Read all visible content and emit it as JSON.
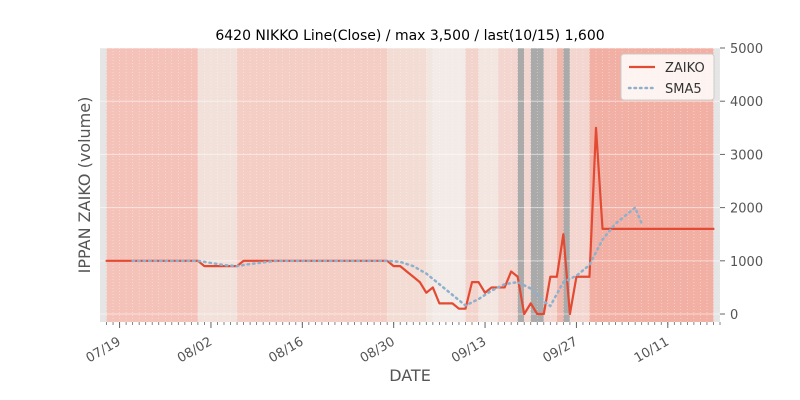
{
  "chart_data": {
    "type": "line",
    "title": "6420 NIKKO Line(Close) / max 3,500 / last(10/15) 1,600",
    "xlabel": "DATE",
    "ylabel": "IPPAN ZAIKO (volume)",
    "x_start": "2024-07-17",
    "x_range": [
      "2024-07-16",
      "2024-10-19"
    ],
    "ylim": [
      -150,
      5000
    ],
    "y_ticks": [
      0,
      1000,
      2000,
      3000,
      4000,
      5000
    ],
    "x_ticks": [
      {
        "date": "2024-07-19",
        "label": "07/19"
      },
      {
        "date": "2024-08-02",
        "label": "08/02"
      },
      {
        "date": "2024-08-16",
        "label": "08/16"
      },
      {
        "date": "2024-08-30",
        "label": "08/30"
      },
      {
        "date": "2024-09-13",
        "label": "09/13"
      },
      {
        "date": "2024-09-27",
        "label": "09/27"
      },
      {
        "date": "2024-10-11",
        "label": "10/11"
      }
    ],
    "grid": true,
    "legend_position": "top-right",
    "colors": {
      "zaiko": "#e24a33",
      "sma5": "#8fb0cc",
      "axes_bg": "#e5e5e5",
      "grid": "#ffffff"
    },
    "series": [
      {
        "name": "ZAIKO",
        "style": "solid",
        "points": [
          [
            "2024-07-17",
            1000
          ],
          [
            "2024-07-18",
            1000
          ],
          [
            "2024-07-19",
            1000
          ],
          [
            "2024-07-20",
            1000
          ],
          [
            "2024-07-21",
            1000
          ],
          [
            "2024-07-22",
            1000
          ],
          [
            "2024-07-23",
            1000
          ],
          [
            "2024-07-24",
            1000
          ],
          [
            "2024-07-25",
            1000
          ],
          [
            "2024-07-26",
            1000
          ],
          [
            "2024-07-27",
            1000
          ],
          [
            "2024-07-28",
            1000
          ],
          [
            "2024-07-29",
            1000
          ],
          [
            "2024-07-30",
            1000
          ],
          [
            "2024-07-31",
            1000
          ],
          [
            "2024-08-01",
            900
          ],
          [
            "2024-08-02",
            900
          ],
          [
            "2024-08-03",
            900
          ],
          [
            "2024-08-04",
            900
          ],
          [
            "2024-08-05",
            900
          ],
          [
            "2024-08-06",
            900
          ],
          [
            "2024-08-07",
            1000
          ],
          [
            "2024-08-08",
            1000
          ],
          [
            "2024-08-09",
            1000
          ],
          [
            "2024-08-10",
            1000
          ],
          [
            "2024-08-11",
            1000
          ],
          [
            "2024-08-12",
            1000
          ],
          [
            "2024-08-13",
            1000
          ],
          [
            "2024-08-14",
            1000
          ],
          [
            "2024-08-15",
            1000
          ],
          [
            "2024-08-16",
            1000
          ],
          [
            "2024-08-17",
            1000
          ],
          [
            "2024-08-18",
            1000
          ],
          [
            "2024-08-19",
            1000
          ],
          [
            "2024-08-20",
            1000
          ],
          [
            "2024-08-21",
            1000
          ],
          [
            "2024-08-22",
            1000
          ],
          [
            "2024-08-23",
            1000
          ],
          [
            "2024-08-24",
            1000
          ],
          [
            "2024-08-25",
            1000
          ],
          [
            "2024-08-26",
            1000
          ],
          [
            "2024-08-27",
            1000
          ],
          [
            "2024-08-28",
            1000
          ],
          [
            "2024-08-29",
            1000
          ],
          [
            "2024-08-30",
            900
          ],
          [
            "2024-08-31",
            900
          ],
          [
            "2024-09-01",
            800
          ],
          [
            "2024-09-02",
            700
          ],
          [
            "2024-09-03",
            600
          ],
          [
            "2024-09-04",
            400
          ],
          [
            "2024-09-05",
            500
          ],
          [
            "2024-09-06",
            200
          ],
          [
            "2024-09-07",
            200
          ],
          [
            "2024-09-08",
            200
          ],
          [
            "2024-09-09",
            100
          ],
          [
            "2024-09-10",
            100
          ],
          [
            "2024-09-11",
            600
          ],
          [
            "2024-09-12",
            600
          ],
          [
            "2024-09-13",
            400
          ],
          [
            "2024-09-14",
            500
          ],
          [
            "2024-09-15",
            500
          ],
          [
            "2024-09-16",
            500
          ],
          [
            "2024-09-17",
            800
          ],
          [
            "2024-09-18",
            700
          ],
          [
            "2024-09-19",
            0
          ],
          [
            "2024-09-20",
            200
          ],
          [
            "2024-09-21",
            0
          ],
          [
            "2024-09-22",
            0
          ],
          [
            "2024-09-23",
            700
          ],
          [
            "2024-09-24",
            700
          ],
          [
            "2024-09-25",
            1500
          ],
          [
            "2024-09-26",
            0
          ],
          [
            "2024-09-27",
            700
          ],
          [
            "2024-09-28",
            700
          ],
          [
            "2024-09-29",
            700
          ],
          [
            "2024-09-30",
            3500
          ],
          [
            "2024-10-01",
            1600
          ],
          [
            "2024-10-02",
            1600
          ],
          [
            "2024-10-03",
            1600
          ],
          [
            "2024-10-04",
            1600
          ],
          [
            "2024-10-05",
            1600
          ],
          [
            "2024-10-06",
            1600
          ],
          [
            "2024-10-07",
            1600
          ],
          [
            "2024-10-08",
            1600
          ],
          [
            "2024-10-09",
            1600
          ],
          [
            "2024-10-10",
            1600
          ],
          [
            "2024-10-11",
            1600
          ],
          [
            "2024-10-12",
            1600
          ],
          [
            "2024-10-13",
            1600
          ],
          [
            "2024-10-14",
            1600
          ],
          [
            "2024-10-15",
            1600
          ],
          [
            "2024-10-16",
            1600
          ],
          [
            "2024-10-17",
            1600
          ],
          [
            "2024-10-18",
            1600
          ]
        ]
      },
      {
        "name": "SMA5",
        "style": "dotted",
        "points": [
          [
            "2024-07-21",
            1000
          ],
          [
            "2024-07-25",
            1000
          ],
          [
            "2024-07-31",
            1000
          ],
          [
            "2024-08-02",
            960
          ],
          [
            "2024-08-04",
            920
          ],
          [
            "2024-08-06",
            900
          ],
          [
            "2024-08-08",
            940
          ],
          [
            "2024-08-12",
            1000
          ],
          [
            "2024-08-20",
            1000
          ],
          [
            "2024-08-29",
            1000
          ],
          [
            "2024-08-31",
            980
          ],
          [
            "2024-09-02",
            900
          ],
          [
            "2024-09-04",
            760
          ],
          [
            "2024-09-06",
            560
          ],
          [
            "2024-09-08",
            360
          ],
          [
            "2024-09-10",
            160
          ],
          [
            "2024-09-12",
            280
          ],
          [
            "2024-09-14",
            440
          ],
          [
            "2024-09-16",
            560
          ],
          [
            "2024-09-18",
            600
          ],
          [
            "2024-09-20",
            480
          ],
          [
            "2024-09-22",
            240
          ],
          [
            "2024-09-23",
            150
          ],
          [
            "2024-09-25",
            600
          ],
          [
            "2024-09-27",
            720
          ],
          [
            "2024-09-29",
            920
          ],
          [
            "2024-10-01",
            1400
          ],
          [
            "2024-10-03",
            1700
          ],
          [
            "2024-10-05",
            1900
          ],
          [
            "2024-10-06",
            2000
          ],
          [
            "2024-10-07",
            1700
          ]
        ]
      }
    ],
    "background_bands": [
      {
        "start": "2024-07-17",
        "end": "2024-07-31",
        "color": "#f4c2b8"
      },
      {
        "start": "2024-07-31",
        "end": "2024-08-06",
        "color": "#f1e1da"
      },
      {
        "start": "2024-08-06",
        "end": "2024-08-29",
        "color": "#f4cdc4"
      },
      {
        "start": "2024-08-29",
        "end": "2024-09-04",
        "color": "#f2dcd4"
      },
      {
        "start": "2024-09-04",
        "end": "2024-09-05",
        "color": "#f2e6e1"
      },
      {
        "start": "2024-09-05",
        "end": "2024-09-10",
        "color": "#f2ebe7"
      },
      {
        "start": "2024-09-10",
        "end": "2024-09-12",
        "color": "#f3d4cc"
      },
      {
        "start": "2024-09-12",
        "end": "2024-09-15",
        "color": "#f3e6e1"
      },
      {
        "start": "2024-09-15",
        "end": "2024-09-18",
        "color": "#f3d6cf"
      },
      {
        "start": "2024-09-18",
        "end": "2024-09-19",
        "color": "#aaaaaa"
      },
      {
        "start": "2024-09-19",
        "end": "2024-09-20",
        "color": "#f3d6cf"
      },
      {
        "start": "2024-09-20",
        "end": "2024-09-22",
        "color": "#aaaaaa"
      },
      {
        "start": "2024-09-22",
        "end": "2024-09-24",
        "color": "#f3d6cf"
      },
      {
        "start": "2024-09-24",
        "end": "2024-09-25",
        "color": "#f2b7ab"
      },
      {
        "start": "2024-09-25",
        "end": "2024-09-26",
        "color": "#aaaaaa"
      },
      {
        "start": "2024-09-26",
        "end": "2024-09-29",
        "color": "#f3d6cf"
      },
      {
        "start": "2024-09-29",
        "end": "2024-10-18",
        "color": "#f2b0a4"
      }
    ]
  }
}
